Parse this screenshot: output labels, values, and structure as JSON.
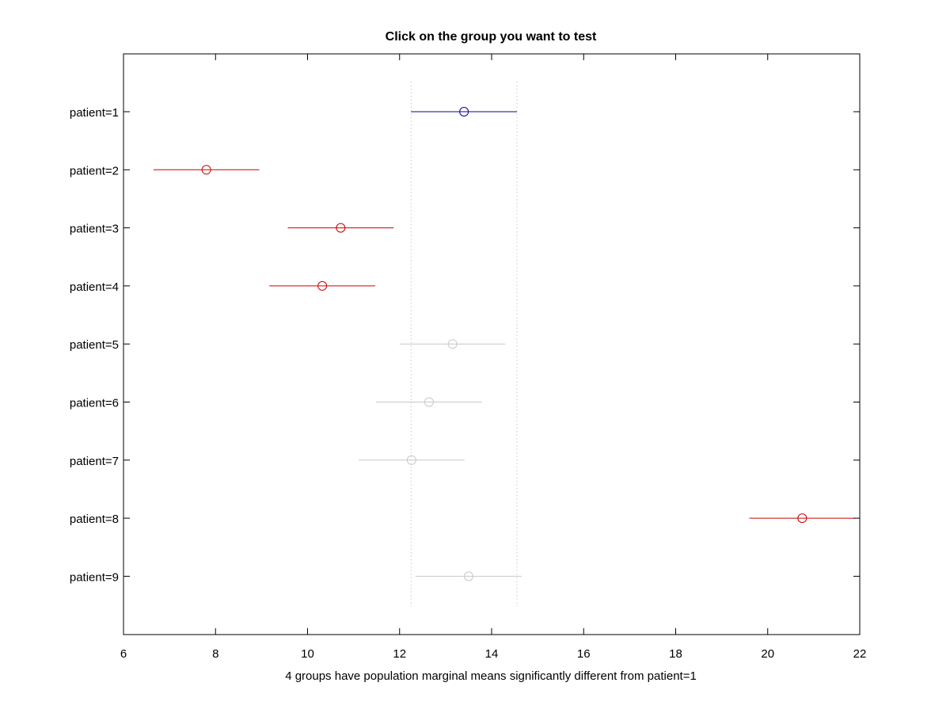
{
  "chart_data": {
    "type": "scatter",
    "title": "Click on the group you want to test",
    "xlabel": "4 groups have population marginal means significantly different from patient=1",
    "ylabel": "",
    "xlim": [
      6,
      22
    ],
    "xticks": [
      "6",
      "8",
      "10",
      "12",
      "14",
      "16",
      "18",
      "20",
      "22"
    ],
    "reference_interval": [
      12.25,
      14.55
    ],
    "colors": {
      "selected": "#0000a0",
      "significant": "#cc0000",
      "not_significant": "#c8c8c8",
      "reference_line": "#c8c8c8"
    },
    "groups": [
      {
        "label": "patient=1",
        "mean": 13.4,
        "lower": 12.25,
        "upper": 14.55,
        "status": "selected"
      },
      {
        "label": "patient=2",
        "mean": 7.8,
        "lower": 6.65,
        "upper": 8.95,
        "status": "significant"
      },
      {
        "label": "patient=3",
        "mean": 10.72,
        "lower": 9.57,
        "upper": 11.87,
        "status": "significant"
      },
      {
        "label": "patient=4",
        "mean": 10.32,
        "lower": 9.17,
        "upper": 11.47,
        "status": "significant"
      },
      {
        "label": "patient=5",
        "mean": 13.15,
        "lower": 12.0,
        "upper": 14.3,
        "status": "not_significant"
      },
      {
        "label": "patient=6",
        "mean": 12.64,
        "lower": 11.49,
        "upper": 13.79,
        "status": "not_significant"
      },
      {
        "label": "patient=7",
        "mean": 12.26,
        "lower": 11.11,
        "upper": 13.41,
        "status": "not_significant"
      },
      {
        "label": "patient=8",
        "mean": 20.75,
        "lower": 19.6,
        "upper": 21.9,
        "status": "significant"
      },
      {
        "label": "patient=9",
        "mean": 13.5,
        "lower": 12.35,
        "upper": 14.65,
        "status": "not_significant"
      }
    ]
  }
}
